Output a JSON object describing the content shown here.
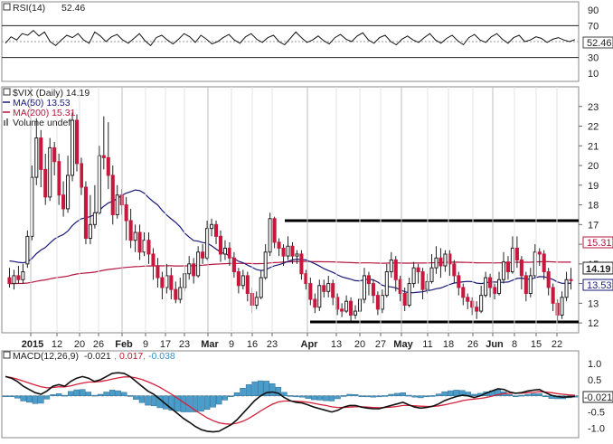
{
  "chart_data": [
    {
      "panel": "rsi",
      "type": "line",
      "legend": {
        "label": "RSI(14)",
        "value": "52.46"
      },
      "y_ticks": [
        90,
        70,
        50,
        30,
        10
      ],
      "bands": [
        70,
        30
      ],
      "ylim": [
        0,
        100
      ],
      "last_value": "52.46",
      "values": [
        48,
        56,
        52,
        60,
        58,
        64,
        57,
        62,
        50,
        45,
        52,
        58,
        55,
        60,
        52,
        48,
        62,
        57,
        50,
        56,
        59,
        52,
        48,
        54,
        60,
        51,
        45,
        55,
        58,
        52,
        47,
        53,
        60,
        56,
        49,
        58,
        53,
        47,
        50,
        55,
        59,
        52,
        48,
        56,
        60,
        53,
        49,
        55,
        58,
        50,
        46,
        54,
        62,
        55,
        49,
        52,
        57,
        51,
        47,
        55,
        59,
        53,
        50,
        57,
        61,
        52,
        48,
        55,
        58,
        50,
        46,
        53,
        57,
        52,
        49,
        55,
        60,
        52,
        48,
        54,
        58,
        51,
        46,
        55,
        59,
        52,
        49,
        56,
        60,
        53,
        48,
        55,
        58,
        50,
        52,
        56,
        54,
        49,
        53,
        55,
        52,
        50,
        52.46
      ]
    },
    {
      "panel": "price",
      "type": "candlestick",
      "legend": [
        {
          "label": "$VIX (Daily) 14.19",
          "color": "#111111"
        },
        {
          "label": "MA(50) 13.53",
          "color": "#1a1a7a"
        },
        {
          "label": "MA(200) 15.31",
          "color": "#b5163e"
        },
        {
          "label": "Volume undef",
          "color": "#555555"
        }
      ],
      "y_ticks": [
        23,
        22,
        21,
        20,
        19,
        18,
        17,
        16,
        15,
        14,
        13,
        12
      ],
      "ylim": [
        11.5,
        24
      ],
      "price_label": "14.19",
      "ma50_label": "13.53",
      "ma200_label": "15.31",
      "resistance": 17.2,
      "support": 12.05,
      "x_labels": [
        "2015",
        "12",
        "20",
        "26",
        "Feb",
        "9",
        "17",
        "23",
        "Mar",
        "9",
        "16",
        "23",
        "Apr",
        "13",
        "20",
        "27",
        "May",
        "11",
        "18",
        "26",
        "Jun",
        "8",
        "15",
        "22"
      ],
      "candles": [
        [
          14.3,
          14.0,
          14.8,
          13.8
        ],
        [
          14.0,
          14.4,
          14.7,
          13.7
        ],
        [
          14.4,
          14.2,
          14.9,
          14.0
        ],
        [
          14.2,
          14.6,
          15.0,
          14.0
        ],
        [
          15.0,
          16.4,
          16.7,
          14.8
        ],
        [
          16.4,
          19.4,
          20.0,
          16.2
        ],
        [
          19.4,
          21.4,
          22.4,
          19.0
        ],
        [
          21.4,
          19.8,
          21.8,
          18.9
        ],
        [
          19.8,
          18.4,
          20.6,
          18.0
        ],
        [
          18.4,
          20.9,
          21.4,
          18.2
        ],
        [
          20.9,
          20.2,
          21.2,
          19.5
        ],
        [
          20.2,
          18.5,
          20.6,
          18.0
        ],
        [
          18.5,
          17.8,
          19.2,
          17.4
        ],
        [
          17.8,
          19.5,
          20.5,
          17.6
        ],
        [
          19.5,
          22.3,
          22.7,
          19.2
        ],
        [
          22.3,
          20.1,
          22.6,
          19.7
        ],
        [
          20.1,
          18.9,
          20.4,
          18.5
        ],
        [
          18.9,
          16.3,
          19.2,
          16.0
        ],
        [
          16.3,
          17.0,
          18.5,
          16.0
        ],
        [
          17.0,
          17.6,
          19.0,
          16.8
        ],
        [
          17.6,
          20.5,
          21.0,
          17.5
        ],
        [
          20.5,
          20.4,
          22.5,
          19.8
        ],
        [
          20.4,
          19.5,
          22.2,
          18.8
        ],
        [
          19.5,
          17.5,
          20.0,
          17.0
        ],
        [
          17.5,
          18.5,
          19.0,
          17.3
        ],
        [
          18.5,
          18.0,
          18.8,
          17.5
        ],
        [
          18.0,
          17.2,
          18.4,
          16.2
        ],
        [
          17.2,
          16.2,
          17.8,
          15.8
        ],
        [
          16.2,
          16.6,
          17.0,
          15.6
        ],
        [
          16.6,
          15.6,
          17.0,
          15.2
        ],
        [
          15.6,
          16.2,
          16.6,
          15.4
        ],
        [
          16.2,
          15.5,
          16.6,
          15.0
        ],
        [
          15.5,
          14.9,
          15.8,
          14.2
        ],
        [
          14.9,
          14.3,
          15.3,
          13.8
        ],
        [
          14.3,
          13.8,
          14.6,
          13.2
        ],
        [
          13.8,
          14.4,
          15.0,
          13.5
        ],
        [
          14.4,
          13.7,
          14.8,
          13.2
        ],
        [
          13.7,
          13.2,
          14.1,
          13.0
        ],
        [
          13.2,
          13.8,
          14.3,
          13.0
        ],
        [
          13.8,
          14.5,
          14.9,
          13.6
        ],
        [
          14.5,
          15.0,
          15.4,
          14.2
        ],
        [
          15.0,
          14.4,
          15.3,
          14.0
        ],
        [
          14.4,
          15.6,
          15.9,
          14.3
        ],
        [
          15.6,
          15.3,
          16.0,
          15.0
        ],
        [
          15.3,
          16.8,
          17.2,
          15.2
        ],
        [
          16.8,
          17.0,
          17.3,
          16.4
        ],
        [
          17.0,
          16.4,
          17.2,
          16.0
        ],
        [
          16.4,
          15.5,
          16.7,
          15.1
        ],
        [
          15.5,
          15.8,
          16.2,
          15.2
        ],
        [
          15.8,
          15.3,
          16.1,
          14.9
        ],
        [
          15.3,
          14.6,
          15.6,
          14.3
        ],
        [
          14.6,
          13.9,
          14.8,
          13.5
        ],
        [
          13.9,
          14.4,
          14.7,
          13.7
        ],
        [
          14.4,
          13.5,
          14.6,
          13.1
        ],
        [
          13.5,
          12.9,
          13.8,
          12.5
        ],
        [
          12.9,
          13.3,
          13.6,
          12.7
        ],
        [
          13.3,
          14.3,
          14.7,
          13.2
        ],
        [
          14.3,
          15.6,
          16.0,
          14.2
        ],
        [
          15.6,
          17.3,
          17.6,
          15.4
        ],
        [
          17.3,
          16.1,
          17.4,
          15.8
        ],
        [
          16.1,
          15.8,
          16.3,
          15.4
        ],
        [
          15.8,
          15.4,
          16.0,
          14.9
        ],
        [
          15.4,
          15.9,
          16.4,
          15.2
        ],
        [
          15.9,
          15.4,
          16.1,
          15.0
        ],
        [
          15.4,
          15.5,
          15.7,
          15.0
        ],
        [
          15.5,
          14.5,
          15.7,
          14.2
        ],
        [
          14.5,
          14.0,
          14.7,
          13.7
        ],
        [
          14.0,
          13.2,
          14.3,
          12.9
        ],
        [
          13.2,
          12.8,
          13.5,
          12.5
        ],
        [
          12.8,
          13.9,
          14.2,
          12.6
        ],
        [
          13.9,
          13.6,
          14.2,
          13.3
        ],
        [
          13.6,
          14.0,
          14.4,
          13.3
        ],
        [
          14.0,
          13.3,
          14.2,
          12.9
        ],
        [
          13.3,
          12.7,
          13.5,
          12.4
        ],
        [
          12.7,
          12.6,
          13.0,
          12.3
        ],
        [
          12.6,
          13.1,
          13.4,
          12.5
        ],
        [
          13.1,
          12.4,
          13.3,
          12.1
        ],
        [
          12.4,
          12.6,
          12.9,
          12.2
        ],
        [
          12.6,
          13.2,
          13.5,
          12.5
        ],
        [
          13.2,
          14.4,
          14.8,
          13.0
        ],
        [
          14.4,
          14.0,
          14.6,
          13.4
        ],
        [
          14.0,
          13.4,
          14.2,
          13.0
        ],
        [
          13.4,
          12.7,
          13.6,
          12.4
        ],
        [
          12.7,
          13.4,
          13.7,
          12.5
        ],
        [
          13.4,
          14.6,
          15.0,
          13.3
        ],
        [
          14.6,
          15.2,
          15.6,
          14.3
        ],
        [
          15.2,
          14.2,
          15.4,
          13.6
        ],
        [
          14.2,
          13.5,
          14.4,
          13.1
        ],
        [
          13.5,
          12.9,
          13.8,
          12.6
        ],
        [
          12.9,
          14.0,
          14.3,
          12.8
        ],
        [
          14.0,
          14.8,
          15.1,
          13.8
        ],
        [
          14.8,
          14.6,
          15.0,
          14.0
        ],
        [
          14.6,
          13.7,
          14.8,
          13.2
        ],
        [
          13.7,
          14.1,
          14.5,
          13.5
        ],
        [
          14.1,
          14.8,
          15.5,
          14.0
        ],
        [
          14.8,
          15.3,
          15.9,
          14.5
        ],
        [
          15.3,
          14.9,
          15.8,
          14.3
        ],
        [
          14.9,
          15.5,
          15.7,
          14.6
        ],
        [
          15.5,
          15.0,
          15.7,
          14.4
        ],
        [
          15.0,
          14.4,
          15.2,
          14.0
        ],
        [
          14.4,
          13.8,
          14.6,
          13.4
        ],
        [
          13.8,
          13.3,
          14.0,
          12.9
        ],
        [
          13.3,
          13.1,
          13.5,
          12.7
        ],
        [
          13.1,
          12.8,
          13.3,
          12.4
        ],
        [
          12.8,
          12.6,
          13.1,
          12.2
        ],
        [
          12.6,
          13.4,
          13.9,
          12.5
        ],
        [
          13.4,
          14.3,
          14.6,
          13.3
        ],
        [
          14.3,
          13.8,
          14.5,
          13.3
        ],
        [
          13.8,
          13.5,
          14.0,
          13.2
        ],
        [
          13.5,
          14.2,
          14.6,
          13.4
        ],
        [
          14.2,
          15.1,
          15.6,
          14.0
        ],
        [
          15.1,
          14.6,
          15.4,
          14.2
        ],
        [
          14.6,
          15.8,
          16.4,
          14.5
        ],
        [
          15.8,
          15.2,
          16.4,
          14.8
        ],
        [
          15.2,
          14.4,
          15.4,
          13.7
        ],
        [
          14.4,
          13.5,
          14.6,
          13.1
        ],
        [
          13.5,
          14.4,
          14.8,
          13.3
        ],
        [
          14.4,
          15.6,
          16.0,
          14.3
        ],
        [
          15.6,
          15.5,
          15.8,
          14.9
        ],
        [
          15.5,
          14.6,
          15.7,
          14.2
        ],
        [
          14.6,
          13.8,
          14.8,
          13.4
        ],
        [
          13.8,
          13.0,
          14.0,
          12.6
        ],
        [
          13.0,
          12.4,
          13.2,
          12.0
        ],
        [
          12.4,
          13.3,
          13.6,
          12.2
        ],
        [
          13.3,
          14.2,
          14.6,
          13.1
        ],
        [
          14.2,
          14.19,
          14.8,
          13.7
        ]
      ]
    },
    {
      "panel": "macd",
      "type": "line+histogram",
      "legend": {
        "label": "MACD(12,26,9)",
        "macd": "-0.021",
        "signal": "0.017",
        "hist": "-0.038"
      },
      "y_ticks": [
        "1.0",
        "0.5",
        "0.0",
        "-0.5",
        "-1.0"
      ],
      "ylim": [
        -1.3,
        1.4
      ],
      "macd_label": "-0.021",
      "macd": [
        0.6,
        0.55,
        0.45,
        0.3,
        0.2,
        0.1,
        0.05,
        0.15,
        0.3,
        0.35,
        0.3,
        0.45,
        0.55,
        0.6,
        0.55,
        0.45,
        0.5,
        0.6,
        0.7,
        0.72,
        0.7,
        0.6,
        0.45,
        0.3,
        0.15,
        0.05,
        -0.1,
        -0.25,
        -0.4,
        -0.55,
        -0.7,
        -0.82,
        -0.95,
        -1.05,
        -1.1,
        -1.12,
        -1.1,
        -1.0,
        -0.9,
        -0.75,
        -0.55,
        -0.35,
        -0.15,
        0.0,
        0.1,
        0.12,
        0.08,
        -0.05,
        -0.15,
        -0.2,
        -0.22,
        -0.28,
        -0.35,
        -0.4,
        -0.45,
        -0.5,
        -0.45,
        -0.35,
        -0.3,
        -0.3,
        -0.35,
        -0.38,
        -0.4,
        -0.4,
        -0.35,
        -0.3,
        -0.25,
        -0.2,
        -0.28,
        -0.35,
        -0.38,
        -0.36,
        -0.32,
        -0.25,
        -0.15,
        -0.08,
        -0.02,
        0.02,
        0.0,
        -0.05,
        0.0,
        0.08,
        0.15,
        0.22,
        0.2,
        0.12,
        0.08,
        0.1,
        0.15,
        0.18,
        0.2,
        0.1,
        0.02,
        -0.02,
        -0.04,
        -0.03,
        -0.021
      ],
      "signal": [
        0.6,
        0.57,
        0.52,
        0.46,
        0.4,
        0.34,
        0.28,
        0.25,
        0.26,
        0.28,
        0.28,
        0.31,
        0.36,
        0.4,
        0.43,
        0.43,
        0.45,
        0.48,
        0.52,
        0.56,
        0.59,
        0.59,
        0.56,
        0.51,
        0.44,
        0.36,
        0.27,
        0.16,
        0.05,
        -0.07,
        -0.2,
        -0.32,
        -0.45,
        -0.57,
        -0.68,
        -0.77,
        -0.84,
        -0.87,
        -0.88,
        -0.85,
        -0.79,
        -0.7,
        -0.59,
        -0.47,
        -0.36,
        -0.26,
        -0.19,
        -0.16,
        -0.16,
        -0.17,
        -0.18,
        -0.2,
        -0.23,
        -0.27,
        -0.3,
        -0.34,
        -0.36,
        -0.36,
        -0.35,
        -0.34,
        -0.34,
        -0.35,
        -0.36,
        -0.37,
        -0.36,
        -0.35,
        -0.33,
        -0.3,
        -0.3,
        -0.31,
        -0.32,
        -0.33,
        -0.33,
        -0.31,
        -0.28,
        -0.24,
        -0.2,
        -0.15,
        -0.12,
        -0.1,
        -0.08,
        -0.05,
        -0.01,
        0.04,
        0.07,
        0.08,
        0.08,
        0.08,
        0.1,
        0.11,
        0.13,
        0.12,
        0.1,
        0.07,
        0.05,
        0.03,
        0.017
      ]
    }
  ]
}
